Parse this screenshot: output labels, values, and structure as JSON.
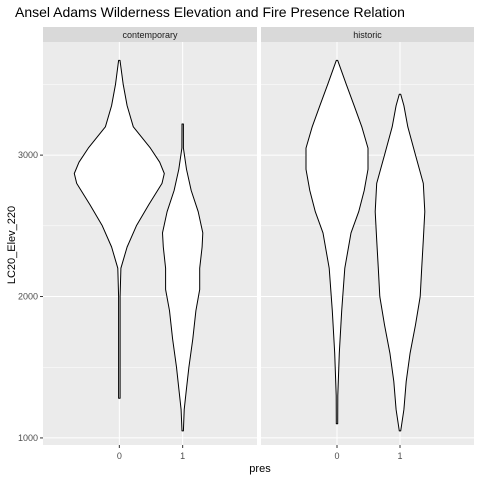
{
  "chart_data": {
    "type": "violin",
    "title": "Ansel Adams Wilderness Elevation and Fire Presence Relation",
    "xlabel": "pres",
    "ylabel": "LC20_Elev_220",
    "ylim": [
      950,
      3800
    ],
    "y_ticks": [
      1000,
      2000,
      3000
    ],
    "categories": [
      "0",
      "1"
    ],
    "grid": true,
    "colors": {
      "panel_bg": "#ebebeb",
      "grid": "#ffffff",
      "strip_bg": "#d9d9d9",
      "violin_fill": "#ffffff",
      "violin_stroke": "#000000"
    },
    "facets": [
      {
        "label": "contemporary",
        "violins": [
          {
            "x": "0",
            "profile": [
              [
                1280,
                0.01
              ],
              [
                1600,
                0.01
              ],
              [
                2000,
                0.01
              ],
              [
                2200,
                0.02
              ],
              [
                2350,
                0.1
              ],
              [
                2500,
                0.22
              ],
              [
                2650,
                0.38
              ],
              [
                2800,
                0.55
              ],
              [
                2870,
                0.58
              ],
              [
                2950,
                0.52
              ],
              [
                3050,
                0.4
              ],
              [
                3200,
                0.18
              ],
              [
                3350,
                0.1
              ],
              [
                3500,
                0.05
              ],
              [
                3670,
                0.0
              ]
            ]
          },
          {
            "x": "1",
            "profile": [
              [
                1050,
                0.0
              ],
              [
                1200,
                0.02
              ],
              [
                1350,
                0.05
              ],
              [
                1500,
                0.08
              ],
              [
                1700,
                0.13
              ],
              [
                1900,
                0.17
              ],
              [
                2050,
                0.22
              ],
              [
                2200,
                0.22
              ],
              [
                2350,
                0.25
              ],
              [
                2450,
                0.26
              ],
              [
                2600,
                0.2
              ],
              [
                2750,
                0.11
              ],
              [
                2900,
                0.05
              ],
              [
                3050,
                0.01
              ],
              [
                3220,
                0.0
              ]
            ]
          }
        ]
      },
      {
        "label": "historic",
        "violins": [
          {
            "x": "0",
            "profile": [
              [
                1100,
                0.0
              ],
              [
                1300,
                0.01
              ],
              [
                1600,
                0.03
              ],
              [
                1900,
                0.06
              ],
              [
                2200,
                0.1
              ],
              [
                2450,
                0.18
              ],
              [
                2600,
                0.28
              ],
              [
                2750,
                0.35
              ],
              [
                2900,
                0.4
              ],
              [
                3050,
                0.4
              ],
              [
                3200,
                0.32
              ],
              [
                3350,
                0.22
              ],
              [
                3500,
                0.12
              ],
              [
                3670,
                0.0
              ]
            ]
          },
          {
            "x": "1",
            "profile": [
              [
                1050,
                0.0
              ],
              [
                1200,
                0.05
              ],
              [
                1400,
                0.08
              ],
              [
                1600,
                0.13
              ],
              [
                1800,
                0.2
              ],
              [
                2000,
                0.26
              ],
              [
                2200,
                0.28
              ],
              [
                2400,
                0.3
              ],
              [
                2600,
                0.32
              ],
              [
                2800,
                0.3
              ],
              [
                3000,
                0.2
              ],
              [
                3200,
                0.1
              ],
              [
                3350,
                0.05
              ],
              [
                3430,
                0.0
              ]
            ]
          }
        ]
      }
    ]
  }
}
